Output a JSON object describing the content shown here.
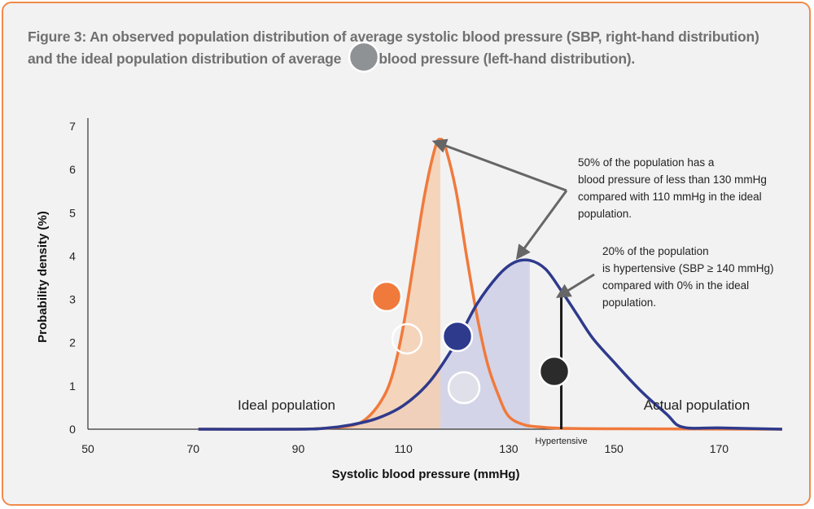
{
  "title_line1": "Figure 3: An observed population distribution of average systolic blood pressure (SBP, right-hand distribution)",
  "title_line2_a": "and the ideal population distribution of average ",
  "title_line2_b": "lic blood pressure (left-hand distribution).",
  "colors": {
    "ideal": "#f07a3c",
    "ideal_fill": "#f5cfb1",
    "actual": "#2e3a8c",
    "actual_fill": "#cfd0e6",
    "marker_gray": "#8f9295",
    "marker_orange": "#f07a3c",
    "marker_navy": "#2e3a8c",
    "marker_black": "#2b2b2b",
    "marker_open": "#e8e8ec",
    "arrow": "#666666",
    "border": "#f08a4b"
  },
  "chart_data": {
    "type": "area",
    "xlabel": "Systolic blood pressure (mmHg)",
    "ylabel": "Probability density (%)",
    "xlim": [
      50,
      180
    ],
    "ylim": [
      0,
      7
    ],
    "xticks": [
      50,
      70,
      90,
      110,
      130,
      150,
      170
    ],
    "yticks": [
      0,
      1,
      2,
      3,
      4,
      5,
      6,
      7
    ],
    "grid": false,
    "series": [
      {
        "name": "Ideal population",
        "x": [
          71,
          80,
          90,
          95,
          100,
          103,
          106,
          108,
          110,
          112,
          114,
          116,
          117,
          118,
          120,
          122,
          124,
          126,
          128,
          130,
          133,
          136,
          140,
          150,
          182
        ],
        "y": [
          0,
          0,
          0,
          0.02,
          0.08,
          0.25,
          0.7,
          1.3,
          2.4,
          3.9,
          5.4,
          6.5,
          6.7,
          6.5,
          5.5,
          4.0,
          2.6,
          1.5,
          0.8,
          0.3,
          0.1,
          0.05,
          0.02,
          0.01,
          0
        ],
        "shaded_to_x": 117
      },
      {
        "name": "Actual population",
        "x": [
          71,
          90,
          95,
          100,
          105,
          110,
          115,
          120,
          124,
          128,
          131,
          134,
          137,
          140,
          143,
          146,
          150,
          155,
          160,
          163,
          170,
          182
        ],
        "y": [
          0,
          0,
          0.02,
          0.1,
          0.25,
          0.55,
          1.1,
          2.0,
          2.9,
          3.55,
          3.85,
          3.9,
          3.7,
          3.2,
          2.65,
          2.1,
          1.55,
          0.9,
          0.35,
          0.05,
          0.03,
          0
        ],
        "shaded_to_x": 134
      }
    ],
    "annotations": [
      {
        "text_lines": [
          "50% of the population has a",
          "blood pressure of less than 130 mmHg",
          "compared with 110 mmHg in the ideal",
          "population."
        ]
      },
      {
        "text_lines": [
          "20% of the population",
          "is hypertensive (SBP  ≥ 140 mmHg)",
          "compared with 0% in the ideal",
          "population."
        ]
      }
    ],
    "threshold": {
      "x": 140,
      "label": "Hypertensive"
    },
    "series_labels": [
      "Ideal population",
      "Actual population"
    ]
  }
}
